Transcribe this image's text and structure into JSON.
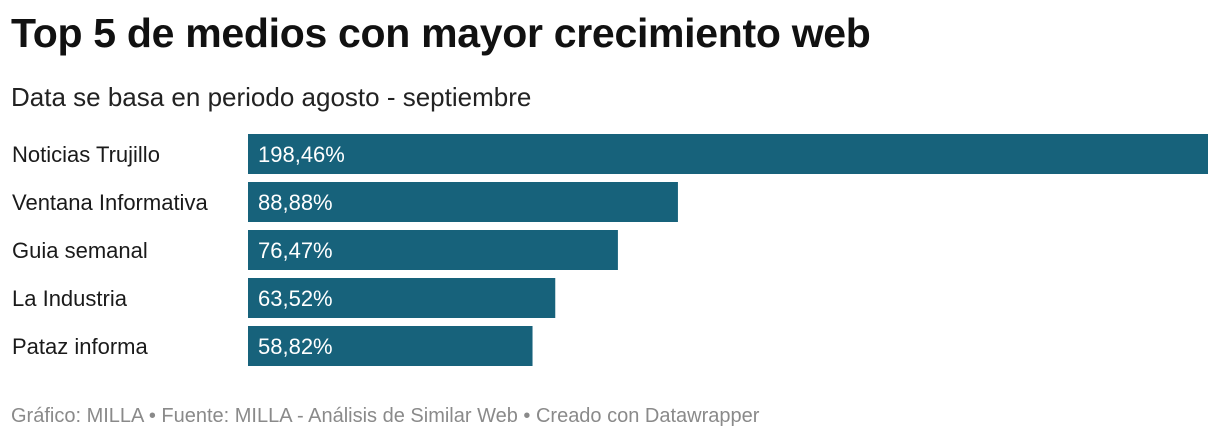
{
  "title": "Top 5 de medios con mayor crecimiento web",
  "subtitle": "Data se basa en periodo agosto - septiembre",
  "footer": "Gráfico: MILLA • Fuente: MILLA - Análisis de Similar Web • Creado con Datawrapper",
  "colors": {
    "bar": "#17627b",
    "bar_label": "#ffffff",
    "category_label": "#1a1a1a"
  },
  "chart_data": {
    "type": "bar",
    "orientation": "horizontal",
    "categories": [
      "Noticias Trujillo",
      "Ventana Informativa",
      "Guia semanal",
      "La Industria",
      "Pataz informa"
    ],
    "values": [
      198.46,
      88.88,
      76.47,
      63.52,
      58.82
    ],
    "value_labels": [
      "198,46%",
      "88,88%",
      "76,47%",
      "63,52%",
      "58,82%"
    ],
    "unit": "%",
    "xlim": [
      0,
      198.46
    ],
    "grid": false,
    "legend": "none"
  }
}
